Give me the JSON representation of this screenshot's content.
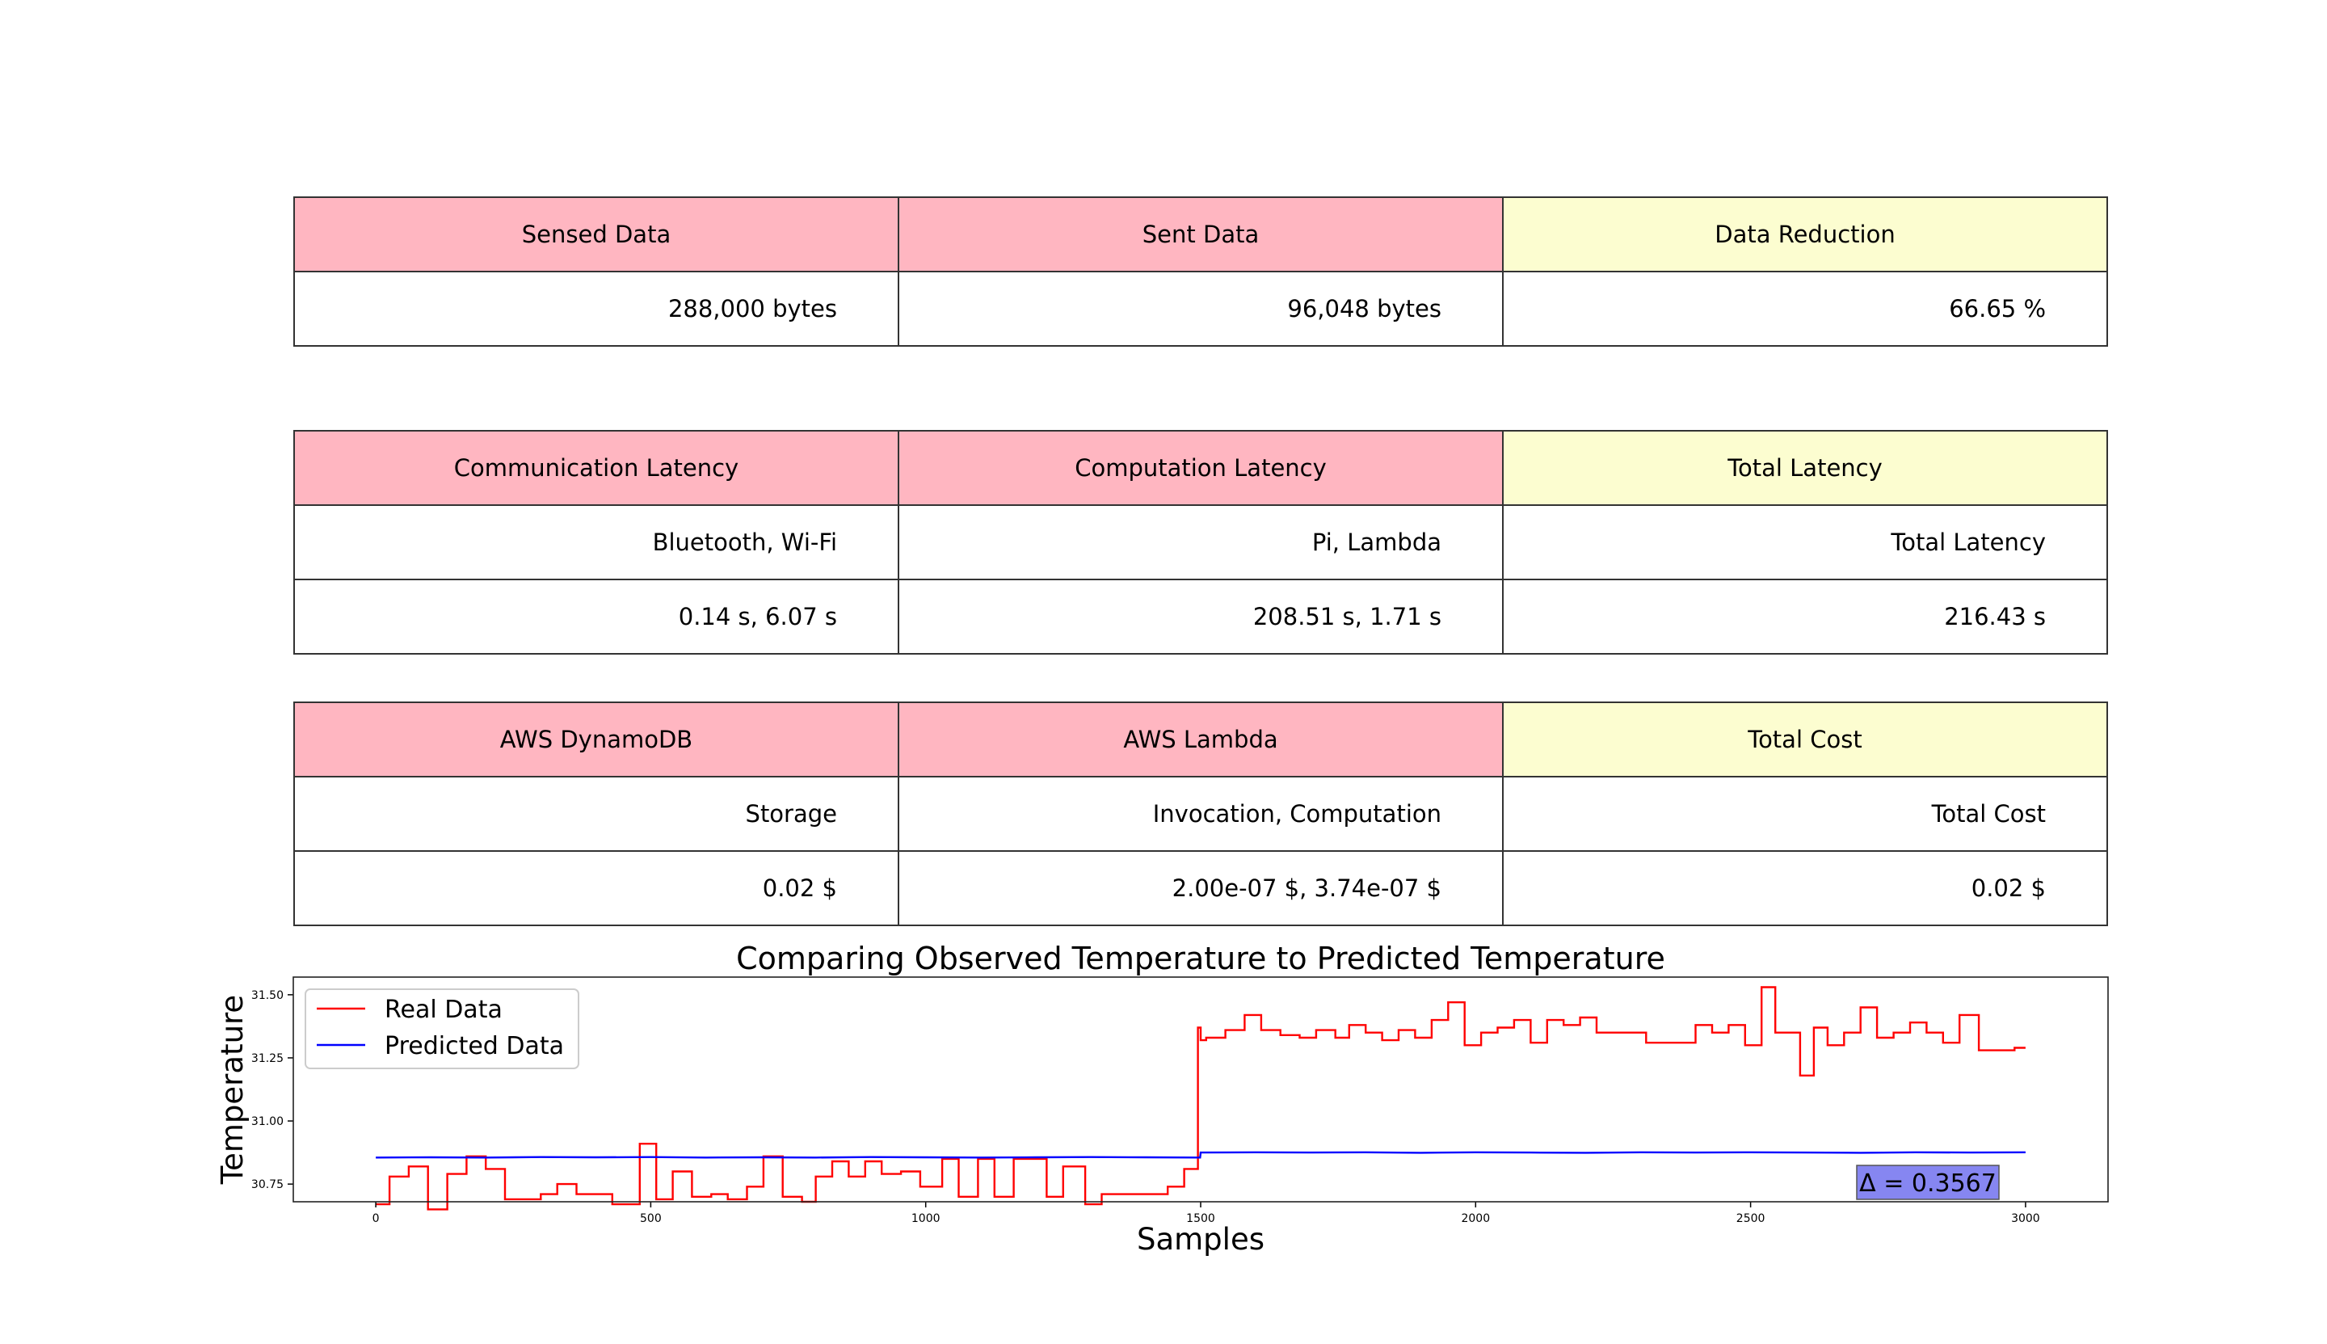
{
  "tables": [
    {
      "headers": [
        {
          "text": "Sensed Data",
          "color": "pink"
        },
        {
          "text": "Sent Data",
          "color": "pink"
        },
        {
          "text": "Data Reduction",
          "color": "yellow"
        }
      ],
      "rows": [
        [
          "288,000 bytes",
          "96,048 bytes",
          "66.65 %"
        ]
      ]
    },
    {
      "headers": [
        {
          "text": "Communication Latency",
          "color": "pink"
        },
        {
          "text": "Computation Latency",
          "color": "pink"
        },
        {
          "text": "Total Latency",
          "color": "yellow"
        }
      ],
      "rows": [
        [
          "Bluetooth, Wi-Fi",
          "Pi, Lambda",
          "Total Latency"
        ],
        [
          "0.14 s, 6.07 s",
          "208.51 s, 1.71 s",
          "216.43 s"
        ]
      ]
    },
    {
      "headers": [
        {
          "text": "AWS DynamoDB",
          "color": "pink"
        },
        {
          "text": "AWS Lambda",
          "color": "pink"
        },
        {
          "text": "Total Cost",
          "color": "yellow"
        }
      ],
      "rows": [
        [
          "Storage",
          "Invocation, Computation",
          "Total Cost"
        ],
        [
          "0.02 $",
          "2.00e-07 $, 3.74e-07 $",
          "0.02 $"
        ]
      ]
    }
  ],
  "colors": {
    "header_pink": "#ffb6c1",
    "header_yellow": "#fcfdd0",
    "real": "#ff0000",
    "predicted": "#0000ff",
    "delta_box": "#8080f0"
  },
  "chart_data": {
    "type": "line",
    "title": "Comparing Observed Temperature to Predicted Temperature",
    "xlabel": "Samples",
    "ylabel": "Temperature",
    "xlim": [
      -150,
      3150
    ],
    "ylim": [
      30.68,
      31.57
    ],
    "xticks": [
      0,
      500,
      1000,
      1500,
      2000,
      2500,
      3000
    ],
    "xtick_labels": [
      "0",
      "500",
      "1000",
      "1500",
      "2000",
      "2500",
      "3000"
    ],
    "yticks": [
      30.75,
      31.0,
      31.25,
      31.5
    ],
    "ytick_labels": [
      "30.75",
      "31.00",
      "31.25",
      "31.50"
    ],
    "grid": false,
    "legend_position": "upper-left",
    "annotation": "Δ = 0.3567",
    "series": [
      {
        "name": "Real Data",
        "color": "#ff0000",
        "step": true,
        "x": [
          0,
          25,
          60,
          95,
          130,
          165,
          200,
          235,
          300,
          330,
          365,
          430,
          480,
          510,
          540,
          575,
          610,
          640,
          675,
          705,
          740,
          775,
          800,
          830,
          860,
          890,
          920,
          955,
          990,
          1030,
          1060,
          1095,
          1125,
          1160,
          1190,
          1220,
          1250,
          1290,
          1320,
          1350,
          1380,
          1410,
          1440,
          1470,
          1495,
          1500,
          1510,
          1545,
          1580,
          1610,
          1645,
          1680,
          1710,
          1745,
          1770,
          1800,
          1830,
          1860,
          1890,
          1920,
          1950,
          1980,
          2010,
          2040,
          2070,
          2100,
          2130,
          2160,
          2190,
          2220,
          2250,
          2280,
          2310,
          2340,
          2370,
          2400,
          2430,
          2460,
          2490,
          2520,
          2545,
          2565,
          2590,
          2615,
          2640,
          2670,
          2700,
          2730,
          2760,
          2790,
          2820,
          2850,
          2880,
          2915,
          2950,
          2980,
          3000
        ],
        "y": [
          30.67,
          30.78,
          30.82,
          30.65,
          30.79,
          30.86,
          30.81,
          30.69,
          30.71,
          30.75,
          30.71,
          30.67,
          30.91,
          30.69,
          30.8,
          30.7,
          30.71,
          30.69,
          30.74,
          30.86,
          30.7,
          30.68,
          30.78,
          30.84,
          30.78,
          30.84,
          30.79,
          30.8,
          30.74,
          30.85,
          30.7,
          30.85,
          30.7,
          30.85,
          30.85,
          30.7,
          30.82,
          30.67,
          30.71,
          30.71,
          30.71,
          30.71,
          30.74,
          30.81,
          31.37,
          31.32,
          31.33,
          31.36,
          31.42,
          31.36,
          31.34,
          31.33,
          31.36,
          31.33,
          31.38,
          31.35,
          31.32,
          31.36,
          31.33,
          31.4,
          31.47,
          31.3,
          31.35,
          31.37,
          31.4,
          31.31,
          31.4,
          31.38,
          31.41,
          31.35,
          31.35,
          31.35,
          31.31,
          31.31,
          31.31,
          31.38,
          31.35,
          31.38,
          31.3,
          31.53,
          31.35,
          31.35,
          31.18,
          31.37,
          31.3,
          31.35,
          31.45,
          31.33,
          31.35,
          31.39,
          31.35,
          31.31,
          31.42,
          31.28,
          31.28,
          31.29,
          31.29
        ]
      },
      {
        "name": "Predicted Data",
        "color": "#0000ff",
        "step": false,
        "x": [
          0,
          100,
          200,
          300,
          400,
          500,
          600,
          700,
          800,
          900,
          1000,
          1100,
          1200,
          1300,
          1400,
          1499,
          1500,
          1600,
          1700,
          1800,
          1900,
          2000,
          2100,
          2200,
          2300,
          2400,
          2500,
          2600,
          2700,
          2800,
          2900,
          3000
        ],
        "y": [
          30.855,
          30.856,
          30.855,
          30.857,
          30.856,
          30.857,
          30.855,
          30.856,
          30.855,
          30.857,
          30.856,
          30.855,
          30.856,
          30.857,
          30.856,
          30.855,
          30.875,
          30.876,
          30.875,
          30.876,
          30.874,
          30.876,
          30.875,
          30.874,
          30.876,
          30.875,
          30.876,
          30.875,
          30.874,
          30.876,
          30.875,
          30.876
        ]
      }
    ]
  }
}
